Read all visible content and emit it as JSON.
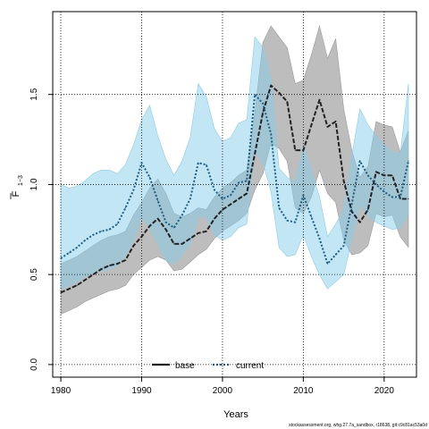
{
  "chart_data": {
    "type": "line",
    "xlabel": "Years",
    "ylabel_main": "F",
    "ylabel_sub": "1−3",
    "xlim": [
      1979,
      2024
    ],
    "ylim": [
      -0.07,
      1.96
    ],
    "x_ticks": [
      1980,
      1990,
      2000,
      2010,
      2020
    ],
    "y_ticks": [
      0.0,
      0.5,
      1.0,
      1.5
    ],
    "y_tick_labels": [
      "0.0",
      "0.5",
      "1.0",
      "1.5"
    ],
    "grid": "dotted",
    "legend_position": "bottom-center",
    "x": [
      1980,
      1981,
      1982,
      1983,
      1984,
      1985,
      1986,
      1987,
      1988,
      1989,
      1990,
      1991,
      1992,
      1993,
      1994,
      1995,
      1996,
      1997,
      1998,
      1999,
      2000,
      2001,
      2002,
      2003,
      2004,
      2005,
      2006,
      2007,
      2008,
      2009,
      2010,
      2011,
      2012,
      2013,
      2014,
      2015,
      2016,
      2017,
      2018,
      2019,
      2020,
      2021,
      2022,
      2023
    ],
    "series": [
      {
        "name": "base",
        "color": "#222222",
        "band_color": "#999999",
        "line_style": "dashed",
        "values": [
          0.4,
          0.42,
          0.44,
          0.47,
          0.5,
          0.53,
          0.55,
          0.56,
          0.58,
          0.66,
          0.71,
          0.77,
          0.81,
          0.75,
          0.67,
          0.67,
          0.7,
          0.73,
          0.74,
          0.81,
          0.86,
          0.89,
          0.92,
          0.95,
          1.17,
          1.4,
          1.55,
          1.51,
          1.46,
          1.19,
          1.19,
          1.33,
          1.47,
          1.32,
          1.35,
          1.02,
          0.85,
          0.79,
          0.86,
          1.07,
          1.05,
          1.05,
          0.92,
          0.92
        ],
        "lower": [
          0.28,
          0.3,
          0.32,
          0.35,
          0.37,
          0.39,
          0.41,
          0.42,
          0.44,
          0.5,
          0.54,
          0.58,
          0.6,
          0.58,
          0.52,
          0.53,
          0.57,
          0.61,
          0.64,
          0.7,
          0.74,
          0.77,
          0.8,
          0.84,
          0.97,
          1.06,
          1.23,
          1.2,
          1.13,
          0.87,
          0.84,
          0.93,
          1.08,
          0.95,
          0.9,
          0.69,
          0.61,
          0.62,
          0.66,
          0.84,
          0.82,
          0.83,
          0.71,
          0.65
        ],
        "upper": [
          0.56,
          0.58,
          0.6,
          0.63,
          0.66,
          0.69,
          0.71,
          0.72,
          0.74,
          0.83,
          0.9,
          0.98,
          1.03,
          0.95,
          0.84,
          0.82,
          0.84,
          0.87,
          0.86,
          0.93,
          0.98,
          1.01,
          1.05,
          1.08,
          1.4,
          1.79,
          1.88,
          1.82,
          1.76,
          1.56,
          1.58,
          1.72,
          1.88,
          1.7,
          1.81,
          1.42,
          1.19,
          1.04,
          1.1,
          1.35,
          1.33,
          1.32,
          1.18,
          1.3
        ]
      },
      {
        "name": "current",
        "color": "#1a5e84",
        "band_color": "#87ceeb",
        "line_style": "dotted",
        "values": [
          0.59,
          0.62,
          0.65,
          0.69,
          0.72,
          0.74,
          0.75,
          0.78,
          0.87,
          0.97,
          1.12,
          1.04,
          0.91,
          0.79,
          0.76,
          0.83,
          0.92,
          1.12,
          1.11,
          0.97,
          0.92,
          0.94,
          1.01,
          1.02,
          1.5,
          1.45,
          1.28,
          0.87,
          0.8,
          0.79,
          0.94,
          0.82,
          0.7,
          0.56,
          0.61,
          0.66,
          0.89,
          1.13,
          1.05,
          1.0,
          0.96,
          0.93,
          0.93,
          1.13
        ],
        "lower": [
          0.42,
          0.44,
          0.46,
          0.49,
          0.51,
          0.52,
          0.53,
          0.55,
          0.61,
          0.69,
          0.82,
          0.76,
          0.67,
          0.58,
          0.56,
          0.61,
          0.67,
          0.82,
          0.82,
          0.72,
          0.69,
          0.71,
          0.76,
          0.78,
          1.19,
          1.12,
          0.96,
          0.65,
          0.6,
          0.61,
          0.72,
          0.6,
          0.5,
          0.42,
          0.46,
          0.5,
          0.69,
          0.89,
          0.83,
          0.79,
          0.77,
          0.75,
          0.76,
          0.84
        ],
        "upper": [
          1.0,
          0.98,
          0.99,
          1.02,
          1.06,
          1.08,
          1.08,
          1.06,
          1.11,
          1.22,
          1.36,
          1.44,
          1.27,
          1.14,
          1.05,
          1.13,
          1.26,
          1.56,
          1.49,
          1.31,
          1.24,
          1.26,
          1.34,
          1.36,
          1.82,
          1.76,
          1.59,
          1.09,
          1.04,
          1.01,
          1.21,
          1.08,
          0.93,
          0.71,
          0.78,
          0.86,
          1.16,
          1.42,
          1.33,
          1.27,
          1.22,
          1.18,
          1.17,
          1.56
        ]
      }
    ]
  },
  "footer_text": "stockassessment.org, whg.27.7a_sandbox, r18638, git:c9c81ac53a0d"
}
